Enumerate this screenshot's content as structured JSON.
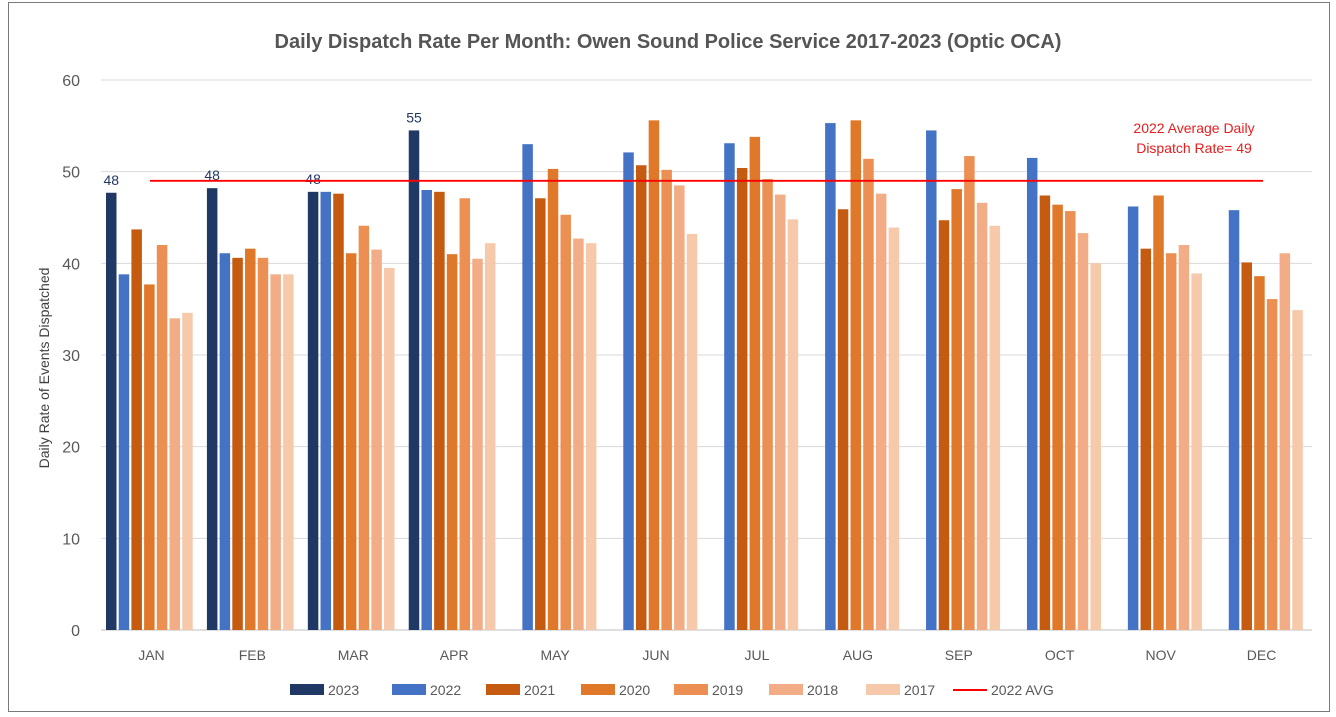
{
  "chart_data": {
    "type": "bar",
    "title": "Daily Dispatch Rate Per Month: Owen Sound Police Service 2017-2023 (Optic OCA)",
    "xlabel": "",
    "ylabel": "Daily Rate of Events Dispatched",
    "ylim": [
      0,
      60
    ],
    "yticks": [
      0,
      10,
      20,
      30,
      40,
      50,
      60
    ],
    "grid": true,
    "legend_position": "bottom",
    "categories": [
      "JAN",
      "FEB",
      "MAR",
      "APR",
      "MAY",
      "JUN",
      "JUL",
      "AUG",
      "SEP",
      "OCT",
      "NOV",
      "DEC"
    ],
    "series": [
      {
        "name": "2023",
        "color": "#203864",
        "values": [
          47.7,
          48.2,
          47.8,
          54.5,
          null,
          null,
          null,
          null,
          null,
          null,
          null,
          null
        ]
      },
      {
        "name": "2022",
        "color": "#4472c4",
        "values": [
          38.8,
          41.1,
          47.8,
          48.0,
          53.0,
          52.1,
          53.1,
          55.3,
          54.5,
          51.5,
          46.2,
          45.8
        ]
      },
      {
        "name": "2021",
        "color": "#c55a11",
        "values": [
          43.7,
          40.6,
          47.6,
          47.8,
          47.1,
          50.7,
          50.4,
          45.9,
          44.7,
          47.4,
          41.6,
          40.1
        ]
      },
      {
        "name": "2020",
        "color": "#e0782a",
        "values": [
          37.7,
          41.6,
          41.1,
          41.0,
          50.3,
          55.6,
          53.8,
          55.6,
          48.1,
          46.4,
          47.4,
          38.6
        ]
      },
      {
        "name": "2019",
        "color": "#ec8f52",
        "values": [
          42.0,
          40.6,
          44.1,
          47.1,
          45.3,
          50.2,
          49.2,
          51.4,
          51.7,
          45.7,
          41.1,
          36.1
        ]
      },
      {
        "name": "2018",
        "color": "#f2ad86",
        "values": [
          34.0,
          38.8,
          41.5,
          40.5,
          42.7,
          48.5,
          47.5,
          47.6,
          46.6,
          43.3,
          42.0,
          41.1
        ]
      },
      {
        "name": "2017",
        "color": "#f7c9ab",
        "values": [
          34.6,
          38.8,
          39.5,
          42.2,
          42.2,
          43.2,
          44.8,
          43.9,
          44.1,
          40.0,
          38.9,
          34.9
        ]
      }
    ],
    "data_labels": [
      {
        "series": "2023",
        "category": "JAN",
        "text": "48"
      },
      {
        "series": "2023",
        "category": "FEB",
        "text": "48"
      },
      {
        "series": "2023",
        "category": "MAR",
        "text": "48"
      },
      {
        "series": "2023",
        "category": "APR",
        "text": "55"
      }
    ],
    "reference_line": {
      "name": "2022 AVG",
      "value": 49,
      "color": "#ff0000",
      "annotation": [
        "2022 Average Daily",
        "Dispatch Rate= 49"
      ]
    },
    "gridline_color": "#d9d9d9",
    "axis_color": "#bfbfbf"
  }
}
